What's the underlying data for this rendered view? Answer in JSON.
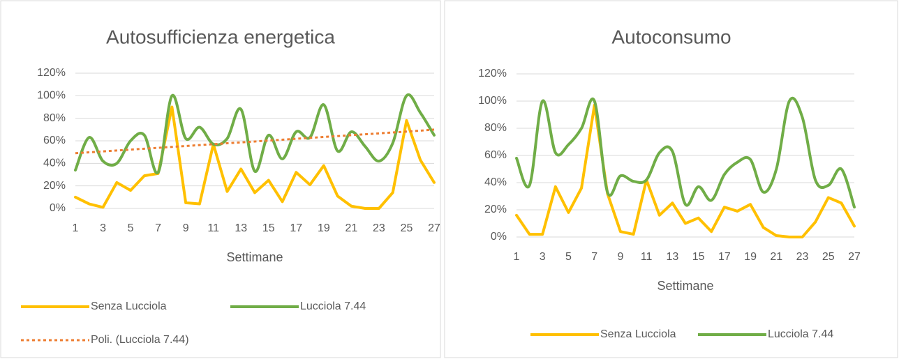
{
  "chart_data": [
    {
      "type": "line",
      "title": "Autosufficienza energetica",
      "x_label": "Settimane",
      "categories": [
        "1",
        null,
        "3",
        null,
        "5",
        null,
        "7",
        null,
        "9",
        null,
        "11",
        null,
        "13",
        null,
        "15",
        null,
        "17",
        null,
        "19",
        null,
        "21",
        null,
        "23",
        null,
        "25",
        null,
        "27"
      ],
      "ylim": [
        0,
        120
      ],
      "yticks": [
        {
          "value": 0,
          "label": "0%"
        },
        {
          "value": 20,
          "label": "20%"
        },
        {
          "value": 40,
          "label": "40%"
        },
        {
          "value": 60,
          "label": "60%"
        },
        {
          "value": 80,
          "label": "80%"
        },
        {
          "value": 100,
          "label": "100%"
        },
        {
          "value": 120,
          "label": "120%"
        }
      ],
      "grid": true,
      "series": [
        {
          "name": "Senza Lucciola",
          "color": "#ffc000",
          "smooth": false,
          "values": [
            10,
            4,
            1,
            23,
            16,
            29,
            31,
            90,
            5,
            4,
            57,
            15,
            35,
            14,
            25,
            6,
            32,
            21,
            38,
            11,
            2,
            0,
            0,
            14,
            78,
            43,
            23
          ]
        },
        {
          "name": "Lucciola 7.44",
          "color": "#70ad47",
          "smooth": true,
          "values": [
            34,
            63,
            42,
            40,
            60,
            65,
            32,
            100,
            62,
            72,
            57,
            62,
            88,
            33,
            65,
            44,
            68,
            63,
            92,
            51,
            68,
            55,
            42,
            58,
            100,
            85,
            65
          ]
        },
        {
          "name": "Poli. (Lucciola 7.44)",
          "color": "#ed7d31",
          "dashed": true,
          "smooth": false,
          "values": [
            49,
            49.8,
            50.6,
            51.4,
            52.2,
            53,
            53.8,
            54.6,
            55.4,
            56.2,
            57,
            57.8,
            58.6,
            59.4,
            60.2,
            61,
            61.8,
            62.6,
            63.4,
            64.2,
            65,
            65.8,
            66.6,
            67.4,
            68.2,
            69,
            70
          ]
        }
      ]
    },
    {
      "type": "line",
      "title": "Autoconsumo",
      "x_label": "Settimane",
      "categories": [
        "1",
        null,
        "3",
        null,
        "5",
        null,
        "7",
        null,
        "9",
        null,
        "11",
        null,
        "13",
        null,
        "15",
        null,
        "17",
        null,
        "19",
        null,
        "21",
        null,
        "23",
        null,
        "25",
        null,
        "27"
      ],
      "ylim": [
        0,
        120
      ],
      "yticks": [
        {
          "value": 0,
          "label": "0%"
        },
        {
          "value": 20,
          "label": "20%"
        },
        {
          "value": 40,
          "label": "40%"
        },
        {
          "value": 60,
          "label": "60%"
        },
        {
          "value": 80,
          "label": "80%"
        },
        {
          "value": 100,
          "label": "100%"
        },
        {
          "value": 120,
          "label": "120%"
        }
      ],
      "grid": true,
      "series": [
        {
          "name": "Senza Lucciola",
          "color": "#ffc000",
          "smooth": false,
          "values": [
            16,
            2,
            2,
            37,
            18,
            36,
            97,
            32,
            4,
            2,
            42,
            16,
            25,
            10,
            14,
            4,
            22,
            19,
            24,
            7,
            1,
            0,
            0,
            11,
            29,
            25,
            8
          ]
        },
        {
          "name": "Lucciola 7.44",
          "color": "#70ad47",
          "smooth": true,
          "values": [
            58,
            38,
            100,
            62,
            68,
            80,
            100,
            33,
            45,
            41,
            42,
            62,
            63,
            24,
            37,
            27,
            46,
            55,
            57,
            33,
            50,
            100,
            88,
            42,
            38,
            50,
            22
          ]
        }
      ]
    }
  ]
}
